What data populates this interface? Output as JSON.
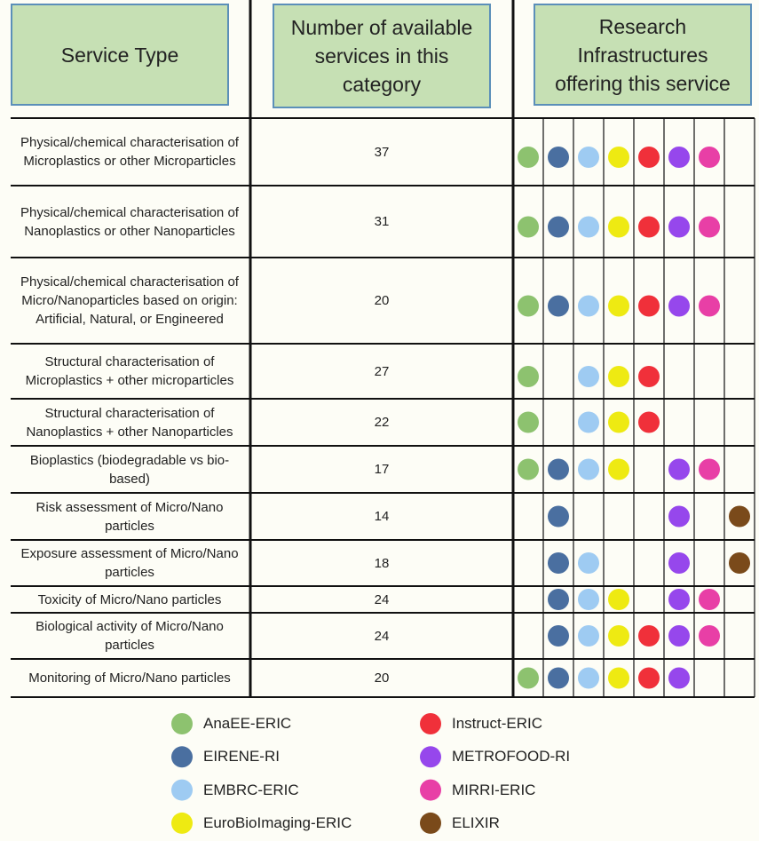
{
  "header": {
    "service_type": "Service Type",
    "count": "Number of available services in this category",
    "infrastructures": "Research Infrastructures offering this service"
  },
  "table": {
    "rows": [
      {
        "service": "Physical/chemical characterisation of Microplastics or other Microparticles",
        "count": 37,
        "offered": [
          true,
          true,
          true,
          true,
          true,
          true,
          true,
          false
        ]
      },
      {
        "service": "Physical/chemical characterisation of Nanoplastics or other Nanoparticles",
        "count": 31,
        "offered": [
          true,
          true,
          true,
          true,
          true,
          true,
          true,
          false
        ]
      },
      {
        "service": "Physical/chemical characterisation of Micro/Nanoparticles based on origin: Artificial, Natural, or Engineered",
        "count": 20,
        "offered": [
          true,
          true,
          true,
          true,
          true,
          true,
          true,
          false
        ]
      },
      {
        "service": "Structural characterisation of Microplastics + other microparticles",
        "count": 27,
        "offered": [
          true,
          false,
          true,
          true,
          true,
          false,
          false,
          false
        ]
      },
      {
        "service": "Structural characterisation of Nanoplastics + other Nanoparticles",
        "count": 22,
        "offered": [
          true,
          false,
          true,
          true,
          true,
          false,
          false,
          false
        ]
      },
      {
        "service": "Bioplastics (biodegradable vs bio-based)",
        "count": 17,
        "offered": [
          true,
          true,
          true,
          true,
          false,
          true,
          true,
          false
        ]
      },
      {
        "service": "Risk assessment of Micro/Nano particles",
        "count": 14,
        "offered": [
          false,
          true,
          false,
          false,
          false,
          true,
          false,
          true
        ]
      },
      {
        "service": "Exposure assessment of Micro/Nano particles",
        "count": 18,
        "offered": [
          false,
          true,
          true,
          false,
          false,
          true,
          false,
          true
        ]
      },
      {
        "service": "Toxicity of Micro/Nano particles",
        "count": 24,
        "offered": [
          false,
          true,
          true,
          true,
          false,
          true,
          true,
          false
        ]
      },
      {
        "service": "Biological activity of Micro/Nano particles",
        "count": 24,
        "offered": [
          false,
          true,
          true,
          true,
          true,
          true,
          true,
          false
        ]
      },
      {
        "service": "Monitoring of Micro/Nano particles",
        "count": 20,
        "offered": [
          true,
          true,
          true,
          true,
          true,
          true,
          false,
          false
        ]
      }
    ]
  },
  "legend": [
    {
      "name": "AnaEE-ERIC",
      "color": "#8dc26f"
    },
    {
      "name": "EIRENE-RI",
      "color": "#4a6fa0"
    },
    {
      "name": "EMBRC-ERIC",
      "color": "#9ecbf2"
    },
    {
      "name": "EuroBioImaging-ERIC",
      "color": "#eeea12"
    },
    {
      "name": "Instruct-ERIC",
      "color": "#f0303a"
    },
    {
      "name": "METROFOOD-RI",
      "color": "#9647ec"
    },
    {
      "name": "MIRRI-ERIC",
      "color": "#e83fa6"
    },
    {
      "name": "ELIXIR",
      "color": "#7a4a1a"
    }
  ]
}
